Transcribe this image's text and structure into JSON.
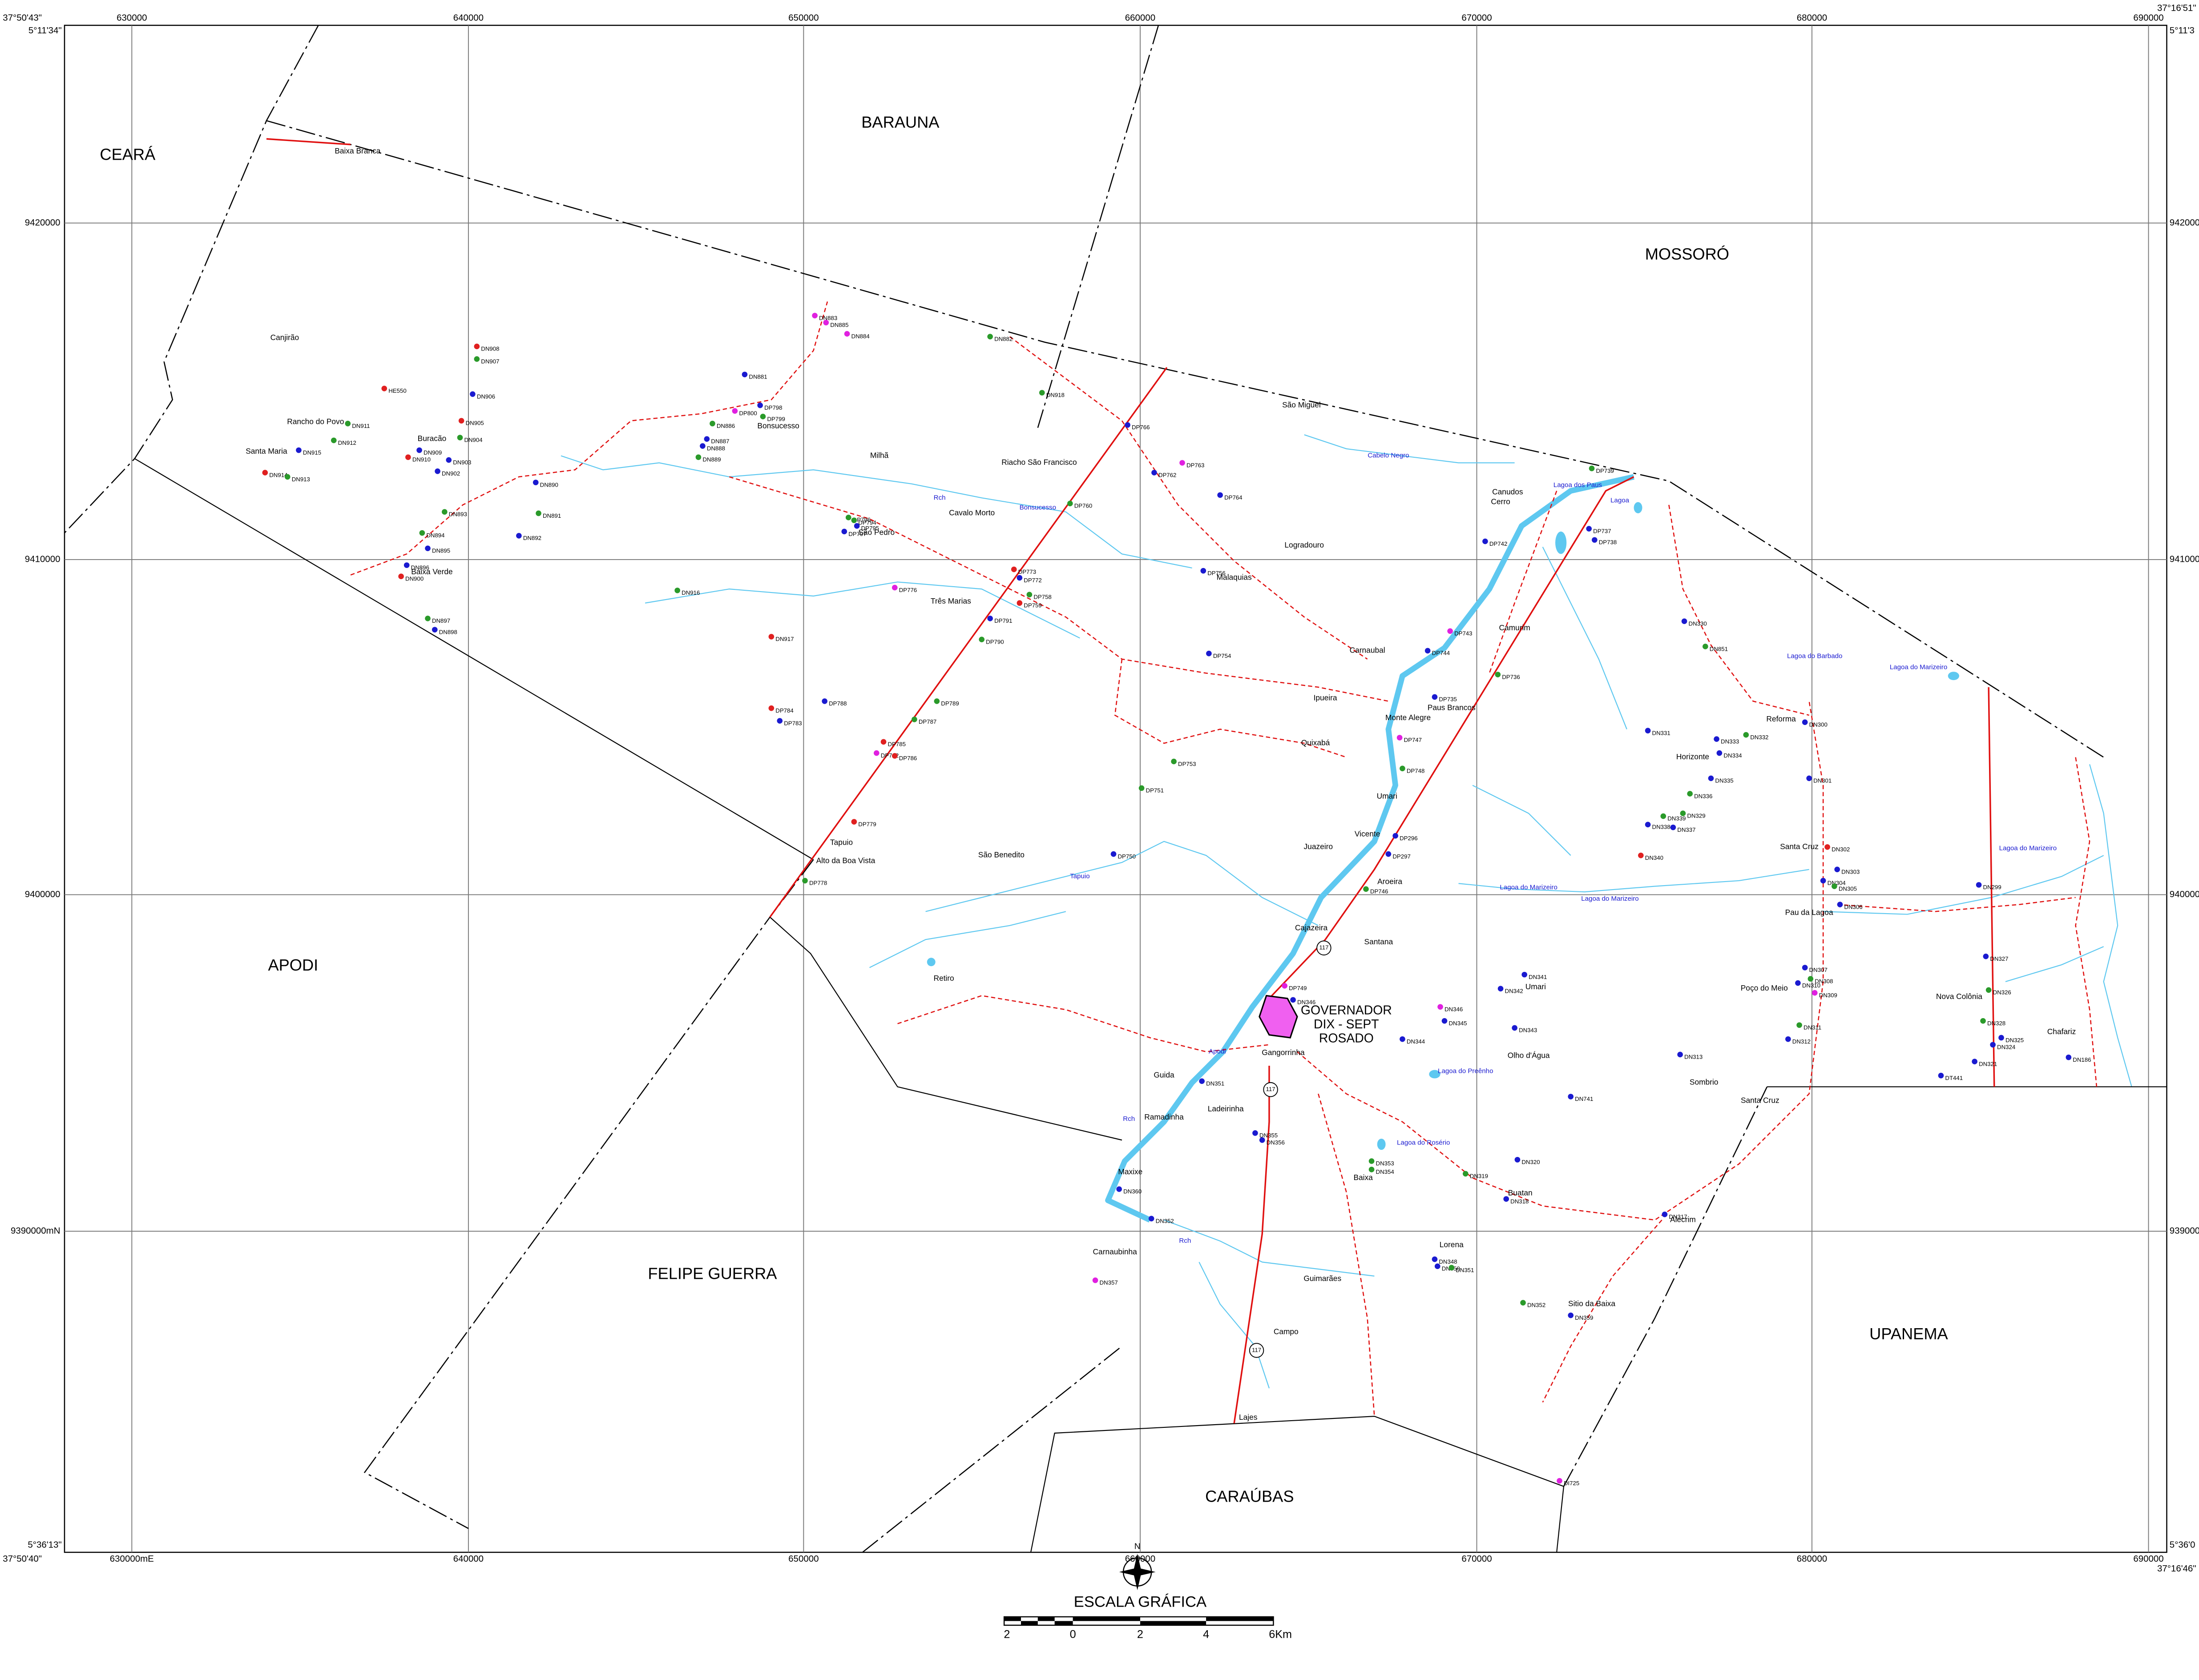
{
  "map": {
    "regions": [
      "CEARÁ",
      "BARAUNA",
      "MOSSORÓ",
      "APODI",
      "FELIPE GUERRA",
      "UPANEMA",
      "CARAÚBAS"
    ],
    "city": [
      "GOVERNADOR",
      "DIX - SEPT",
      "ROSADO"
    ],
    "eastings_top": [
      "630000",
      "640000",
      "650000",
      "660000",
      "670000",
      "680000",
      "690000"
    ],
    "eastings_bottom": [
      "630000mE",
      "640000",
      "650000",
      "660000",
      "670000",
      "680000",
      "690000"
    ],
    "northings_left": [
      "9420000",
      "9410000",
      "9400000",
      "9390000mN"
    ],
    "northings_right": [
      "9420000",
      "9410000",
      "9400000",
      "9390000"
    ],
    "corners": [
      "37°50'43\"",
      "5°11'34\"",
      "37°16'51\"",
      "5°11'3",
      "5°36'13\"",
      "37°50'40\"",
      "37°16'46\"",
      "5°36'0"
    ],
    "places": [
      "Baixa Branca",
      "Canjirão",
      "Rancho do Povo",
      "Santa Maria",
      "Buracão",
      "Baixa Verde",
      "Bonsucesso",
      "Milhã",
      "Cavalo Morto",
      "São Pedro",
      "Riacho São Francisco",
      "Três Marias",
      "São Miguel",
      "Canudos",
      "Cerro",
      "Logradouro",
      "Malaquias",
      "Carnaubal",
      "Camurim",
      "Ipueira",
      "Quixabá",
      "Paus Brancos",
      "Monte Alegre",
      "Umari",
      "Juazeiro",
      "Vicente",
      "Aroeira",
      "Santana",
      "Cajazeira",
      "São Benedito",
      "Tapuio",
      "Alto da Boa Vista",
      "Retiro",
      "Guida",
      "Ladeirinha",
      "Ramadinha",
      "Maxixe",
      "Carnaubinha",
      "Guimarães",
      "Campo",
      "Lajes",
      "Lorena",
      "Baixa",
      "Buatan",
      "Sitio da Baixa",
      "Alecrim",
      "Sombrio",
      "Olho d'Água",
      "Umari",
      "Santa Cruz",
      "Santa Cruz",
      "Pau da Lagoa",
      "Reforma",
      "Horizonte",
      "Poço do Meio",
      "Nova Colônia",
      "Chafariz",
      "Gangorrinha"
    ],
    "wells": [
      {
        "label": "DN908",
        "color": "#e02020"
      },
      {
        "label": "DN907",
        "color": "#2a9a2a"
      },
      {
        "label": "DN906",
        "color": "#1a1ad0"
      },
      {
        "label": "HE550",
        "color": "#e02020"
      },
      {
        "label": "DN911",
        "color": "#2a9a2a"
      },
      {
        "label": "DN912",
        "color": "#2a9a2a"
      },
      {
        "label": "DN915",
        "color": "#1a1ad0"
      },
      {
        "label": "DN914",
        "color": "#e02020"
      },
      {
        "label": "DN913",
        "color": "#2a9a2a"
      },
      {
        "label": "DN905",
        "color": "#e02020"
      },
      {
        "label": "DN904",
        "color": "#2a9a2a"
      },
      {
        "label": "DN909",
        "color": "#1a1ad0"
      },
      {
        "label": "DN910",
        "color": "#e02020"
      },
      {
        "label": "DN903",
        "color": "#1a1ad0"
      },
      {
        "label": "DN902",
        "color": "#1a1ad0"
      },
      {
        "label": "DN890",
        "color": "#1a1ad0"
      },
      {
        "label": "DN891",
        "color": "#2a9a2a"
      },
      {
        "label": "DN892",
        "color": "#1a1ad0"
      },
      {
        "label": "DN893",
        "color": "#2a9a2a"
      },
      {
        "label": "DN894",
        "color": "#2a9a2a"
      },
      {
        "label": "DN895",
        "color": "#1a1ad0"
      },
      {
        "label": "DN896",
        "color": "#1a1ad0"
      },
      {
        "label": "DN900",
        "color": "#e02020"
      },
      {
        "label": "DN897",
        "color": "#2a9a2a"
      },
      {
        "label": "DN898",
        "color": "#1a1ad0"
      },
      {
        "label": "DN916",
        "color": "#2a9a2a"
      },
      {
        "label": "DN917",
        "color": "#e02020"
      },
      {
        "label": "DP784",
        "color": "#e02020"
      },
      {
        "label": "DP783",
        "color": "#1a1ad0"
      },
      {
        "label": "DP788",
        "color": "#1a1ad0"
      },
      {
        "label": "DN881",
        "color": "#1a1ad0"
      },
      {
        "label": "DN883",
        "color": "#e020e0"
      },
      {
        "label": "DN885",
        "color": "#e020e0"
      },
      {
        "label": "DN884",
        "color": "#e020e0"
      },
      {
        "label": "DN882",
        "color": "#2a9a2a"
      },
      {
        "label": "DN918",
        "color": "#2a9a2a"
      },
      {
        "label": "DP798",
        "color": "#1a1ad0"
      },
      {
        "label": "DP799",
        "color": "#2a9a2a"
      },
      {
        "label": "DP800",
        "color": "#e020e0"
      },
      {
        "label": "DN886",
        "color": "#2a9a2a"
      },
      {
        "label": "DN887",
        "color": "#1a1ad0"
      },
      {
        "label": "DN888",
        "color": "#1a1ad0"
      },
      {
        "label": "DN889",
        "color": "#2a9a2a"
      },
      {
        "label": "DP796",
        "color": "#2a9a2a"
      },
      {
        "label": "DP794",
        "color": "#2a9a2a"
      },
      {
        "label": "DP795",
        "color": "#1a1ad0"
      },
      {
        "label": "DP797",
        "color": "#1a1ad0"
      },
      {
        "label": "DP776",
        "color": "#e020e0"
      },
      {
        "label": "DP772",
        "color": "#1a1ad0"
      },
      {
        "label": "DP773",
        "color": "#e02020"
      },
      {
        "label": "DP758",
        "color": "#2a9a2a"
      },
      {
        "label": "DP759",
        "color": "#e02020"
      },
      {
        "label": "DP790",
        "color": "#2a9a2a"
      },
      {
        "label": "DP791",
        "color": "#1a1ad0"
      },
      {
        "label": "DP789",
        "color": "#2a9a2a"
      },
      {
        "label": "DP787",
        "color": "#2a9a2a"
      },
      {
        "label": "DP785",
        "color": "#e02020"
      },
      {
        "label": "DP782",
        "color": "#e020e0"
      },
      {
        "label": "DP786",
        "color": "#e02020"
      },
      {
        "label": "DP779",
        "color": "#e02020"
      },
      {
        "label": "DP778",
        "color": "#2a9a2a"
      },
      {
        "label": "DP766",
        "color": "#1a1ad0"
      },
      {
        "label": "DP762",
        "color": "#1a1ad0"
      },
      {
        "label": "DP763",
        "color": "#e020e0"
      },
      {
        "label": "DP764",
        "color": "#1a1ad0"
      },
      {
        "label": "DP760",
        "color": "#2a9a2a"
      },
      {
        "label": "DP754",
        "color": "#1a1ad0"
      },
      {
        "label": "DP753",
        "color": "#2a9a2a"
      },
      {
        "label": "DP751",
        "color": "#2a9a2a"
      },
      {
        "label": "DP750",
        "color": "#1a1ad0"
      },
      {
        "label": "DP756",
        "color": "#1a1ad0"
      },
      {
        "label": "DP743",
        "color": "#e020e0"
      },
      {
        "label": "DP744",
        "color": "#1a1ad0"
      },
      {
        "label": "DP735",
        "color": "#1a1ad0"
      },
      {
        "label": "DP736",
        "color": "#2a9a2a"
      },
      {
        "label": "DP747",
        "color": "#e020e0"
      },
      {
        "label": "DP748",
        "color": "#2a9a2a"
      },
      {
        "label": "DP296",
        "color": "#1a1ad0"
      },
      {
        "label": "DP297",
        "color": "#1a1ad0"
      },
      {
        "label": "DP746",
        "color": "#2a9a2a"
      },
      {
        "label": "DP739",
        "color": "#2a9a2a"
      },
      {
        "label": "DP737",
        "color": "#1a1ad0"
      },
      {
        "label": "DP738",
        "color": "#1a1ad0"
      },
      {
        "label": "DP742",
        "color": "#1a1ad0"
      },
      {
        "label": "DP749",
        "color": "#e020e0"
      },
      {
        "label": "DN346",
        "color": "#1a1ad0"
      },
      {
        "label": "DN341",
        "color": "#1a1ad0"
      },
      {
        "label": "DN342",
        "color": "#1a1ad0"
      },
      {
        "label": "DN343",
        "color": "#1a1ad0"
      },
      {
        "label": "DN344",
        "color": "#1a1ad0"
      },
      {
        "label": "DN345",
        "color": "#1a1ad0"
      },
      {
        "label": "DN346",
        "color": "#e020e0"
      },
      {
        "label": "DN330",
        "color": "#1a1ad0"
      },
      {
        "label": "DN851",
        "color": "#2a9a2a"
      },
      {
        "label": "DN331",
        "color": "#1a1ad0"
      },
      {
        "label": "DN333",
        "color": "#1a1ad0"
      },
      {
        "label": "DN332",
        "color": "#2a9a2a"
      },
      {
        "label": "DN334",
        "color": "#1a1ad0"
      },
      {
        "label": "DN335",
        "color": "#1a1ad0"
      },
      {
        "label": "DN336",
        "color": "#2a9a2a"
      },
      {
        "label": "DN339",
        "color": "#2a9a2a"
      },
      {
        "label": "DN338",
        "color": "#1a1ad0"
      },
      {
        "label": "DN329",
        "color": "#2a9a2a"
      },
      {
        "label": "DN337",
        "color": "#1a1ad0"
      },
      {
        "label": "DN340",
        "color": "#e02020"
      },
      {
        "label": "DN300",
        "color": "#1a1ad0"
      },
      {
        "label": "DN301",
        "color": "#1a1ad0"
      },
      {
        "label": "DN302",
        "color": "#e02020"
      },
      {
        "label": "DN303",
        "color": "#1a1ad0"
      },
      {
        "label": "DN304",
        "color": "#1a1ad0"
      },
      {
        "label": "DN305",
        "color": "#2a9a2a"
      },
      {
        "label": "DN306",
        "color": "#1a1ad0"
      },
      {
        "label": "DN307",
        "color": "#1a1ad0"
      },
      {
        "label": "DN308",
        "color": "#2a9a2a"
      },
      {
        "label": "DN310",
        "color": "#1a1ad0"
      },
      {
        "label": "DN309",
        "color": "#e020e0"
      },
      {
        "label": "DN311",
        "color": "#2a9a2a"
      },
      {
        "label": "DN312",
        "color": "#1a1ad0"
      },
      {
        "label": "DN313",
        "color": "#1a1ad0"
      },
      {
        "label": "DN299",
        "color": "#1a1ad0"
      },
      {
        "label": "DN327",
        "color": "#1a1ad0"
      },
      {
        "label": "DN326",
        "color": "#2a9a2a"
      },
      {
        "label": "DN328",
        "color": "#2a9a2a"
      },
      {
        "label": "DN325",
        "color": "#1a1ad0"
      },
      {
        "label": "DN324",
        "color": "#1a1ad0"
      },
      {
        "label": "DN321",
        "color": "#1a1ad0"
      },
      {
        "label": "DT441",
        "color": "#1a1ad0"
      },
      {
        "label": "DN186",
        "color": "#1a1ad0"
      },
      {
        "label": "DN741",
        "color": "#1a1ad0"
      },
      {
        "label": "DN320",
        "color": "#1a1ad0"
      },
      {
        "label": "DN319",
        "color": "#2a9a2a"
      },
      {
        "label": "DN318",
        "color": "#1a1ad0"
      },
      {
        "label": "DN317",
        "color": "#1a1ad0"
      },
      {
        "label": "DN353",
        "color": "#2a9a2a"
      },
      {
        "label": "DN354",
        "color": "#2a9a2a"
      },
      {
        "label": "DN355",
        "color": "#1a1ad0"
      },
      {
        "label": "DN356",
        "color": "#1a1ad0"
      },
      {
        "label": "DN351",
        "color": "#1a1ad0"
      },
      {
        "label": "DN360",
        "color": "#1a1ad0"
      },
      {
        "label": "DN352",
        "color": "#1a1ad0"
      },
      {
        "label": "DN357",
        "color": "#e020e0"
      },
      {
        "label": "DN348",
        "color": "#1a1ad0"
      },
      {
        "label": "DN350",
        "color": "#1a1ad0"
      },
      {
        "label": "DN351",
        "color": "#2a9a2a"
      },
      {
        "label": "DN352",
        "color": "#2a9a2a"
      },
      {
        "label": "DN359",
        "color": "#1a1ad0"
      },
      {
        "label": "DI725",
        "color": "#e020e0"
      }
    ],
    "water": [
      "Lagoa do Barbado",
      "Lagoa do Marizeiro",
      "Lagoa do Marizeiro",
      "Lagoa do Marizeiro",
      "Lagoa do Marizeiro",
      "Lagoa do Preênho",
      "Lagoa do Rosério",
      "Lagoa dos Paus",
      "Lagoa",
      "Bonsucesso",
      "Cabelo Negro",
      "Tapuio",
      "Rch",
      "Apodi",
      "Rch",
      "Rch"
    ],
    "roads": [
      "117",
      "117",
      "117"
    ],
    "compass": "N",
    "scale": {
      "title": "ESCALA GRÁFICA",
      "ticks": [
        "2",
        "0",
        "2",
        "4",
        "6Km"
      ]
    }
  }
}
